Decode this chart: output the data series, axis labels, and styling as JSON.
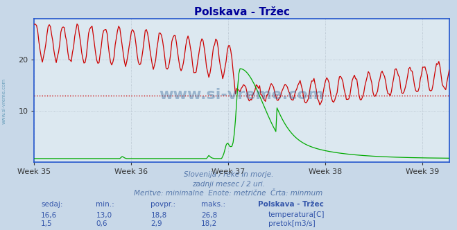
{
  "title": "Polskava - Tržec",
  "title_color": "#000099",
  "bg_color": "#c8d8e8",
  "plot_bg_color": "#dce8f0",
  "grid_color": "#b0bcc8",
  "xlabel_weeks": [
    "Week 35",
    "Week 36",
    "Week 37",
    "Week 38",
    "Week 39"
  ],
  "ylim": [
    0,
    28
  ],
  "yticks": [
    10,
    20
  ],
  "temp_color": "#cc0000",
  "flow_color": "#00aa00",
  "hline_value": 13.0,
  "hline_color": "#cc0000",
  "watermark": "www.si-vreme.com",
  "sidebar_text": "www.si-vreme.com",
  "footer_line1": "Slovenija / reke in morje.",
  "footer_line2": "zadnji mesec / 2 uri.",
  "footer_line3": "Meritve: minimalne  Enote: metrične  Črta: minmum",
  "footer_color": "#5577aa",
  "table_header": [
    "sedaj:",
    "min.:",
    "povpr.:",
    "maks.:",
    "Polskava - Tržec"
  ],
  "table_row1": [
    "16,6",
    "13,0",
    "18,8",
    "26,8",
    "temperatura[C]"
  ],
  "table_row2": [
    "1,5",
    "0,6",
    "2,9",
    "18,2",
    "pretok[m3/s]"
  ],
  "table_color": "#3355aa",
  "n_points": 360,
  "axis_color": "#2255cc",
  "spine_bottom_color": "#2266cc",
  "tick_color": "#333333"
}
